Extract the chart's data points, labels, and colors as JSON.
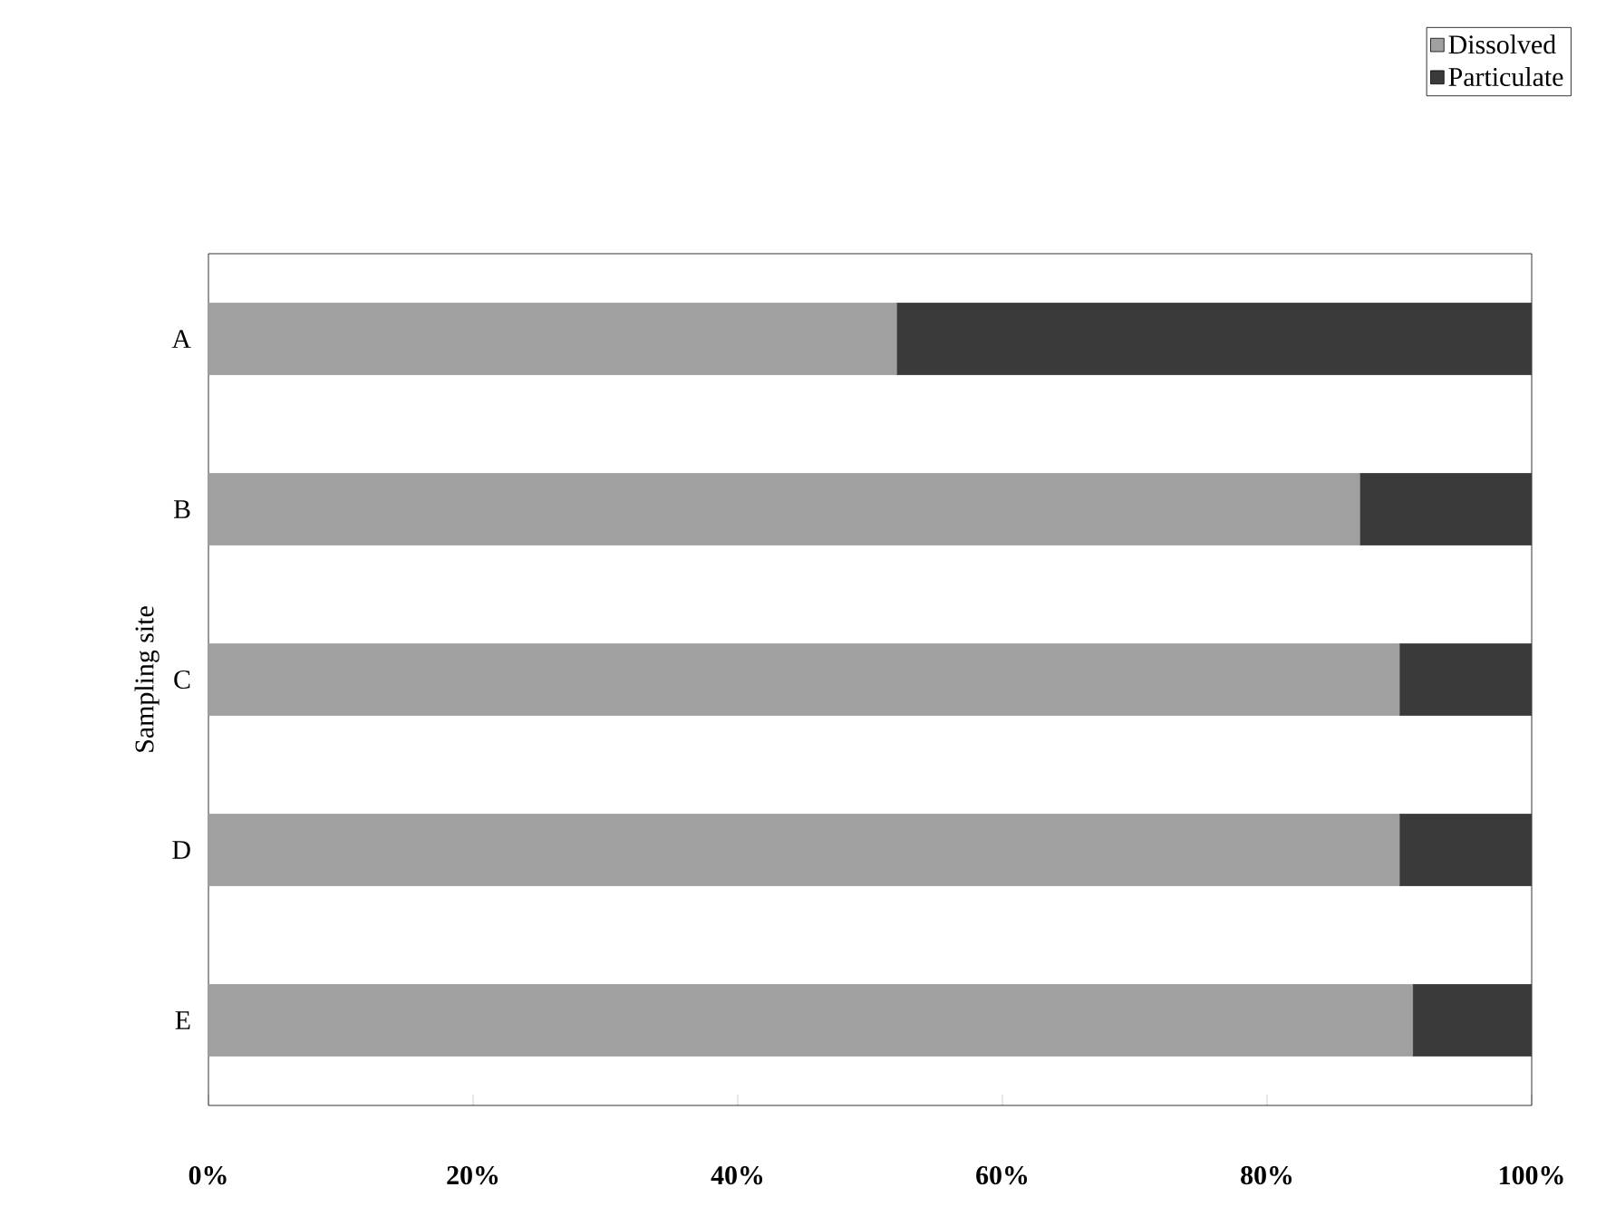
{
  "chart_data": {
    "type": "bar",
    "orientation": "horizontal",
    "stacked": true,
    "ylabel": "Sampling site",
    "categories": [
      "A",
      "B",
      "C",
      "D",
      "E"
    ],
    "series": [
      {
        "name": "Dissolved",
        "color": "#a0a0a0",
        "values": [
          52,
          87,
          90,
          90,
          91
        ]
      },
      {
        "name": "Particulate",
        "color": "#3a3a3a",
        "values": [
          48,
          13,
          10,
          10,
          9
        ]
      }
    ],
    "xlim": [
      0,
      100
    ],
    "xticks": [
      {
        "value": 0,
        "label": "0%"
      },
      {
        "value": 20,
        "label": "20%"
      },
      {
        "value": 40,
        "label": "40%"
      },
      {
        "value": 60,
        "label": "60%"
      },
      {
        "value": 80,
        "label": "80%"
      },
      {
        "value": 100,
        "label": "100%"
      }
    ],
    "legend": "top right"
  }
}
